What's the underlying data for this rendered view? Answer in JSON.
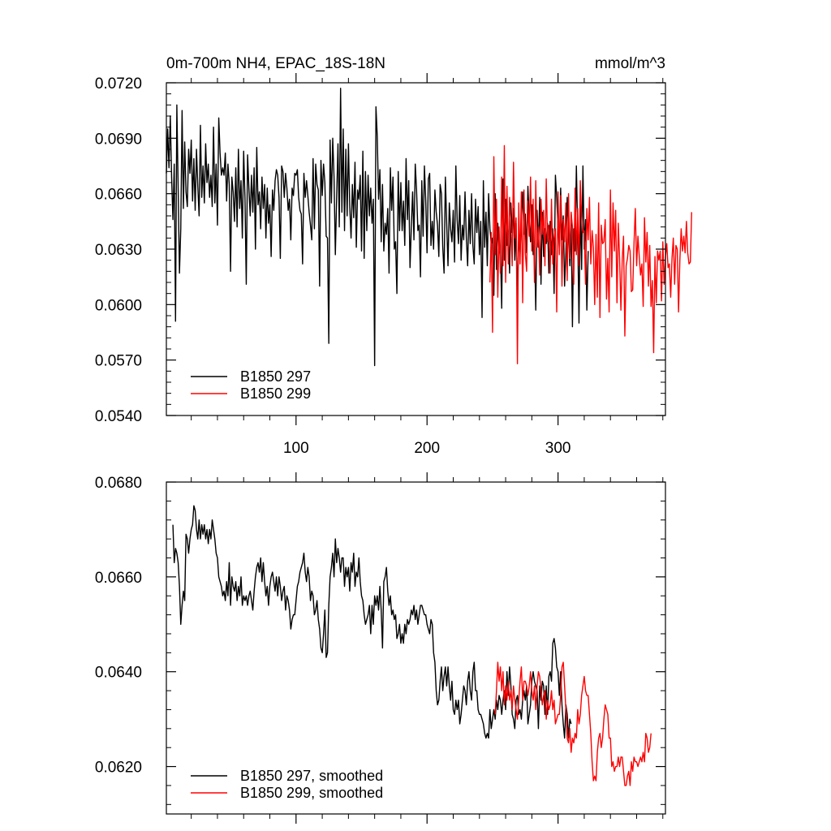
{
  "chart_data": [
    {
      "type": "line",
      "title": "0m-700m NH4, EPAC_18S-18N",
      "units": "mmol/m^3",
      "xlim": [
        1,
        382
      ],
      "ylim": [
        0.054,
        0.072
      ],
      "yticks": [
        "0.0540",
        "0.0570",
        "0.0600",
        "0.0630",
        "0.0660",
        "0.0690",
        "0.0720"
      ],
      "xticks": [
        100,
        200,
        300
      ],
      "legend_position": "bottom-left",
      "series": [
        {
          "name": "B1850 297",
          "color": "#000000",
          "x_start": 1,
          "values": [
            0.0671,
            0.0695,
            0.0674,
            0.0702,
            0.0669,
            0.0646,
            0.0676,
            0.0591,
            0.0708,
            0.0663,
            0.0617,
            0.0641,
            0.0705,
            0.0652,
            0.0688,
            0.0661,
            0.0653,
            0.0684,
            0.0671,
            0.0689,
            0.0656,
            0.0679,
            0.0651,
            0.0684,
            0.0664,
            0.0648,
            0.0697,
            0.0658,
            0.0675,
            0.0655,
            0.0687,
            0.0666,
            0.0676,
            0.0658,
            0.067,
            0.0653,
            0.0696,
            0.0655,
            0.0676,
            0.0643,
            0.0701,
            0.0682,
            0.067,
            0.0674,
            0.067,
            0.0682,
            0.0656,
            0.0676,
            0.0665,
            0.0618,
            0.0669,
            0.0661,
            0.0645,
            0.0674,
            0.0642,
            0.0684,
            0.0652,
            0.0667,
            0.0636,
            0.0683,
            0.0658,
            0.0611,
            0.0681,
            0.0663,
            0.0648,
            0.067,
            0.065,
            0.0674,
            0.063,
            0.0685,
            0.0654,
            0.0661,
            0.0641,
            0.0669,
            0.0652,
            0.0665,
            0.0636,
            0.0663,
            0.0644,
            0.0654,
            0.0626,
            0.0662,
            0.0651,
            0.0667,
            0.0673,
            0.067,
            0.0658,
            0.0625,
            0.0675,
            0.0672,
            0.0658,
            0.0671,
            0.0663,
            0.0651,
            0.0657,
            0.0635,
            0.0663,
            0.0659,
            0.0671,
            0.067,
            0.0673,
            0.0658,
            0.0651,
            0.0649,
            0.0622,
            0.0671,
            0.0658,
            0.0667,
            0.0659,
            0.065,
            0.0643,
            0.0635,
            0.0679,
            0.0641,
            0.0676,
            0.0665,
            0.0662,
            0.061,
            0.0678,
            0.0659,
            0.0676,
            0.0666,
            0.0637,
            0.0636,
            0.0579,
            0.0689,
            0.0655,
            0.069,
            0.0669,
            0.0627,
            0.0658,
            0.0687,
            0.0642,
            0.0717,
            0.065,
            0.0695,
            0.064,
            0.0684,
            0.0648,
            0.0687,
            0.0653,
            0.0636,
            0.0665,
            0.0647,
            0.0677,
            0.0631,
            0.0662,
            0.0657,
            0.067,
            0.0629,
            0.0683,
            0.0625,
            0.0672,
            0.064,
            0.067,
            0.0648,
            0.0663,
            0.0644,
            0.0657,
            0.0567,
            0.0707,
            0.0691,
            0.0657,
            0.0673,
            0.0634,
            0.0665,
            0.0629,
            0.0644,
            0.0638,
            0.0652,
            0.0617,
            0.0674,
            0.0651,
            0.0669,
            0.063,
            0.0634,
            0.0606,
            0.0672,
            0.064,
            0.0666,
            0.064,
            0.0656,
            0.0632,
            0.0679,
            0.0646,
            0.0667,
            0.062,
            0.0642,
            0.0661,
            0.0635,
            0.0676,
            0.0662,
            0.064,
            0.0643,
            0.0615,
            0.0667,
            0.0637,
            0.0675,
            0.0656,
            0.0628,
            0.0668,
            0.0671,
            0.0632,
            0.0645,
            0.063,
            0.0662,
            0.065,
            0.0643,
            0.0626,
            0.0665,
            0.066,
            0.0631,
            0.0617,
            0.0669,
            0.0644,
            0.0621,
            0.0655,
            0.0641,
            0.0634,
            0.0651,
            0.0623,
            0.0675,
            0.0646,
            0.0633,
            0.0659,
            0.0624,
            0.0643,
            0.0635,
            0.0661,
            0.0636,
            0.0621,
            0.0651,
            0.0633,
            0.066,
            0.0632,
            0.0622,
            0.0657,
            0.0639,
            0.0653,
            0.0627,
            0.0645,
            0.0593,
            0.0667,
            0.0631,
            0.065,
            0.0621,
            0.066,
            0.0641,
            0.0633,
            0.0636,
            0.0605,
            0.066,
            0.0619,
            0.0644,
            0.0628,
            0.0631,
            0.0598,
            0.0668,
            0.0624,
            0.0657,
            0.0632,
            0.064,
            0.0617,
            0.0655,
            0.0639,
            0.0652,
            0.0624,
            0.0644,
            0.0601,
            0.0638,
            0.0627,
            0.0645,
            0.0661,
            0.0638,
            0.0649,
            0.0628,
            0.0664,
            0.0646,
            0.0634,
            0.0654,
            0.0627,
            0.0634,
            0.0597,
            0.0651,
            0.0631,
            0.0658,
            0.0611,
            0.065,
            0.0626,
            0.0641,
            0.0633,
            0.0644,
            0.0617,
            0.0645,
            0.0627,
            0.0641,
            0.0606,
            0.067,
            0.0658,
            0.0642,
            0.063,
            0.0663,
            0.0635,
            0.0648,
            0.061,
            0.0628,
            0.0658,
            0.0641,
            0.0621,
            0.0644,
            0.0588,
            0.0641,
            0.0629,
            0.0675,
            0.064,
            0.059,
            0.0654,
            0.0619,
            0.0675,
            0.063,
            0.0646,
            0.0597,
            0.0629
          ]
        },
        {
          "name": "B1850 299",
          "color": "#ff0000",
          "x_start": 248,
          "values": [
            0.0612,
            0.0639,
            0.0585,
            0.068,
            0.0627,
            0.0657,
            0.0604,
            0.0642,
            0.0617,
            0.0669,
            0.0621,
            0.0686,
            0.0612,
            0.0664,
            0.0622,
            0.0658,
            0.0644,
            0.0621,
            0.0677,
            0.0636,
            0.0647,
            0.0568,
            0.0655,
            0.0622,
            0.0661,
            0.0601,
            0.0662,
            0.0628,
            0.0618,
            0.0656,
            0.0637,
            0.0669,
            0.0629,
            0.0657,
            0.0612,
            0.0667,
            0.0631,
            0.0642,
            0.0616,
            0.0657,
            0.0638,
            0.0651,
            0.0621,
            0.0668,
            0.0634,
            0.0643,
            0.0617,
            0.0657,
            0.0622,
            0.0636,
            0.0641,
            0.0596,
            0.0661,
            0.0627,
            0.0659,
            0.061,
            0.0646,
            0.0634,
            0.0655,
            0.0613,
            0.066,
            0.0625,
            0.065,
            0.0642,
            0.0611,
            0.0663,
            0.0627,
            0.0652,
            0.0621,
            0.0667,
            0.0648,
            0.0639,
            0.064,
            0.0611,
            0.0652,
            0.0635,
            0.0658,
            0.0622,
            0.064,
            0.0631,
            0.06,
            0.0638,
            0.0604,
            0.0655,
            0.0593,
            0.0643,
            0.0633,
            0.0634,
            0.0646,
            0.0603,
            0.0625,
            0.0596,
            0.0662,
            0.0615,
            0.0655,
            0.0629,
            0.0651,
            0.0601,
            0.0644,
            0.0625,
            0.0597,
            0.0624,
            0.0637,
            0.0583,
            0.0621,
            0.0625,
            0.0632,
            0.0629,
            0.0607,
            0.0608,
            0.0633,
            0.0652,
            0.0621,
            0.0637,
            0.0626,
            0.0616,
            0.0622,
            0.0599,
            0.0647,
            0.0623,
            0.0639,
            0.061,
            0.0632,
            0.0599,
            0.0613,
            0.0574,
            0.0626,
            0.0601,
            0.0629,
            0.0624,
            0.0629,
            0.0602,
            0.0634,
            0.0611,
            0.0626,
            0.0633,
            0.062,
            0.0622,
            0.0604,
            0.0625,
            0.0636,
            0.0611,
            0.0632,
            0.063,
            0.0596,
            0.0624,
            0.0641,
            0.0629,
            0.0637,
            0.0628,
            0.0645,
            0.0628,
            0.0622,
            0.0623,
            0.065
          ]
        }
      ]
    },
    {
      "type": "line",
      "title": "",
      "xlim": [
        1,
        382
      ],
      "ylim": [
        0.061,
        0.068
      ],
      "yticks": [
        "0.0620",
        "0.0640",
        "0.0660",
        "0.0680"
      ],
      "xticks": [
        100,
        200,
        300
      ],
      "legend_position": "bottom-left",
      "series": [
        {
          "name": "B1850 297, smoothed",
          "color": "#000000",
          "x_start": 6,
          "values": [
            0.0671,
            0.0663,
            0.0666,
            0.0665,
            0.0663,
            0.0658,
            0.065,
            0.0654,
            0.0657,
            0.0655,
            0.0669,
            0.0668,
            0.0665,
            0.0668,
            0.067,
            0.0671,
            0.0675,
            0.0674,
            0.067,
            0.0668,
            0.0672,
            0.0668,
            0.0671,
            0.0669,
            0.0671,
            0.0668,
            0.067,
            0.0667,
            0.067,
            0.0668,
            0.0672,
            0.067,
            0.0668,
            0.0665,
            0.0664,
            0.066,
            0.0659,
            0.0658,
            0.0656,
            0.0657,
            0.0655,
            0.0659,
            0.0656,
            0.0663,
            0.0654,
            0.066,
            0.0658,
            0.0657,
            0.0659,
            0.0655,
            0.0658,
            0.0656,
            0.066,
            0.0654,
            0.0656,
            0.0655,
            0.0656,
            0.0654,
            0.0656,
            0.0657,
            0.0655,
            0.0653,
            0.0657,
            0.066,
            0.0662,
            0.0663,
            0.0661,
            0.0664,
            0.0659,
            0.0663,
            0.0659,
            0.0656,
            0.0658,
            0.0654,
            0.0658,
            0.066,
            0.0661,
            0.0659,
            0.0657,
            0.066,
            0.0656,
            0.066,
            0.0658,
            0.0655,
            0.0657,
            0.0658,
            0.0653,
            0.0656,
            0.0655,
            0.0653,
            0.0649,
            0.0651,
            0.0652,
            0.0652,
            0.0655,
            0.0658,
            0.0659,
            0.0661,
            0.0662,
            0.0663,
            0.0665,
            0.0661,
            0.0659,
            0.0662,
            0.066,
            0.0655,
            0.0657,
            0.0656,
            0.0652,
            0.0653,
            0.0655,
            0.0651,
            0.0649,
            0.0645,
            0.0644,
            0.0648,
            0.0653,
            0.0643,
            0.0644,
            0.0654,
            0.066,
            0.0662,
            0.0665,
            0.066,
            0.0668,
            0.0663,
            0.0666,
            0.0664,
            0.0661,
            0.0664,
            0.0664,
            0.0658,
            0.0662,
            0.066,
            0.0662,
            0.0657,
            0.0663,
            0.0661,
            0.0665,
            0.0658,
            0.0661,
            0.066,
            0.0664,
            0.0659,
            0.0656,
            0.0655,
            0.0652,
            0.065,
            0.0651,
            0.0652,
            0.0654,
            0.0648,
            0.0654,
            0.065,
            0.0656,
            0.0654,
            0.0656,
            0.0653,
            0.0658,
            0.0653,
            0.0645,
            0.0659,
            0.066,
            0.0662,
            0.0657,
            0.0654,
            0.0656,
            0.0652,
            0.0653,
            0.0651,
            0.0652,
            0.0647,
            0.0648,
            0.065,
            0.0646,
            0.0648,
            0.0646,
            0.065,
            0.0648,
            0.0651,
            0.065,
            0.0651,
            0.0653,
            0.0652,
            0.0654,
            0.0651,
            0.0653,
            0.065,
            0.0652,
            0.0654,
            0.0654,
            0.0653,
            0.0652,
            0.0652,
            0.065,
            0.0649,
            0.0648,
            0.0651,
            0.065,
            0.0644,
            0.0642,
            0.0636,
            0.0633,
            0.0634,
            0.0638,
            0.0641,
            0.0636,
            0.0639,
            0.0641,
            0.0637,
            0.0641,
            0.0637,
            0.0634,
            0.0638,
            0.0632,
            0.0631,
            0.0634,
            0.0632,
            0.0634,
            0.0629,
            0.0631,
            0.0634,
            0.0637,
            0.0636,
            0.0633,
            0.0638,
            0.064,
            0.0636,
            0.0634,
            0.064,
            0.0642,
            0.0636,
            0.0636,
            0.0632,
            0.0631,
            0.0631,
            0.063,
            0.0629,
            0.0627,
            0.0626,
            0.0627,
            0.0626,
            0.0632,
            0.0628,
            0.063,
            0.0632,
            0.063,
            0.0634,
            0.0632,
            0.0635,
            0.0634,
            0.0631,
            0.0634,
            0.0636,
            0.0632,
            0.064,
            0.0635,
            0.0641,
            0.0637,
            0.0631,
            0.063,
            0.0628,
            0.0634,
            0.0635,
            0.0631,
            0.0632,
            0.063,
            0.0634,
            0.0636,
            0.0634,
            0.0637,
            0.0629,
            0.0631,
            0.0633,
            0.0638,
            0.064,
            0.0638,
            0.0637,
            0.0636,
            0.0628,
            0.0637,
            0.0634,
            0.0638,
            0.0637,
            0.0631,
            0.0637,
            0.0631,
            0.0639,
            0.064,
            0.0638,
            0.0646,
            0.0647,
            0.0645,
            0.0641,
            0.064,
            0.0635,
            0.064,
            0.0633,
            0.0629,
            0.0626,
            0.0633,
            0.0631,
            0.0626,
            0.063,
            0.0629
          ]
        },
        {
          "name": "B1850 299, smoothed",
          "color": "#ff0000",
          "x_start": 252,
          "values": [
            0.0631,
            0.0636,
            0.0642,
            0.0638,
            0.0641,
            0.0636,
            0.064,
            0.0633,
            0.0637,
            0.0634,
            0.0638,
            0.0634,
            0.0636,
            0.0632,
            0.0637,
            0.0634,
            0.0632,
            0.063,
            0.0634,
            0.0638,
            0.0641,
            0.0634,
            0.0638,
            0.0638,
            0.0637,
            0.0635,
            0.0637,
            0.064,
            0.0636,
            0.0634,
            0.0637,
            0.0632,
            0.0637,
            0.064,
            0.0639,
            0.0636,
            0.0633,
            0.0635,
            0.0636,
            0.063,
            0.0634,
            0.0632,
            0.0633,
            0.0636,
            0.0632,
            0.0634,
            0.0629,
            0.063,
            0.0631,
            0.0631,
            0.0635,
            0.0641,
            0.0642,
            0.0637,
            0.0632,
            0.0626,
            0.0625,
            0.0628,
            0.0623,
            0.0626,
            0.0625,
            0.0627,
            0.0626,
            0.0632,
            0.0629,
            0.0631,
            0.0635,
            0.0637,
            0.0639,
            0.0636,
            0.0635,
            0.0635,
            0.0631,
            0.0627,
            0.0621,
            0.0617,
            0.0618,
            0.0617,
            0.0623,
            0.0626,
            0.0627,
            0.0624,
            0.0626,
            0.063,
            0.0633,
            0.0632,
            0.0631,
            0.0626,
            0.0626,
            0.062,
            0.0621,
            0.0619,
            0.062,
            0.062,
            0.0622,
            0.062,
            0.0622,
            0.0622,
            0.0619,
            0.0616,
            0.0616,
            0.0618,
            0.0619,
            0.0616,
            0.0621,
            0.0619,
            0.0622,
            0.0621,
            0.0621,
            0.062,
            0.0621,
            0.0622,
            0.0621,
            0.0623,
            0.0621,
            0.0627,
            0.0626,
            0.0623,
            0.0624,
            0.0627
          ]
        }
      ]
    }
  ]
}
